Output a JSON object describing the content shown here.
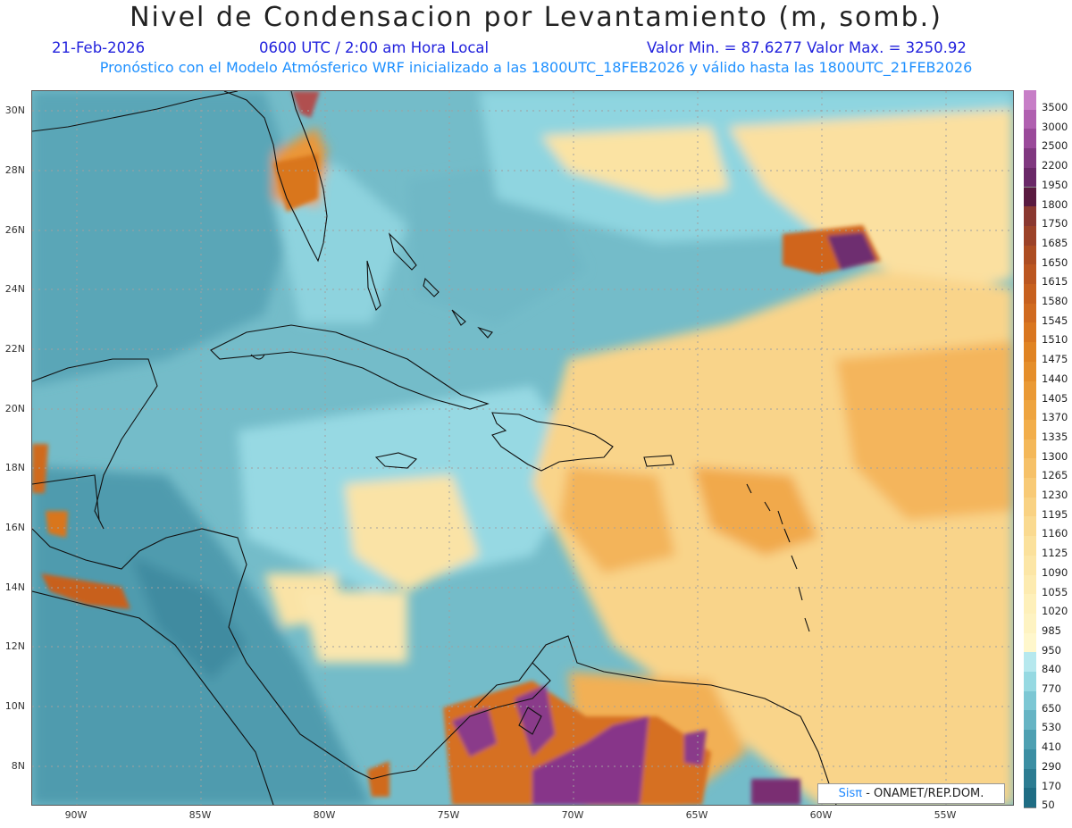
{
  "title": "Nivel de Condensacion por Levantamiento (m, somb.)",
  "date": "21-Feb-2026",
  "time": "0600 UTC / 2:00 am Hora Local",
  "min_max": "Valor Min. = 87.6277   Valor Max. = 3250.92",
  "subtitle": "Pronóstico con el Modelo Atmósferico WRF inicializado a las 1800UTC_18FEB2026 y válido hasta las  1800UTC_21FEB2026",
  "credit": {
    "logo": "Sisπ",
    "text": "- ONAMET/REP.DOM."
  },
  "lat_labels": [
    "30N",
    "28N",
    "26N",
    "24N",
    "22N",
    "20N",
    "18N",
    "16N",
    "14N",
    "12N",
    "10N",
    "8N"
  ],
  "lon_labels": [
    "90W",
    "85W",
    "80W",
    "75W",
    "70W",
    "65W",
    "60W",
    "55W"
  ],
  "colorbar": {
    "labels": [
      "3500",
      "3000",
      "2500",
      "2200",
      "1950",
      "1800",
      "1750",
      "1685",
      "1650",
      "1615",
      "1580",
      "1545",
      "1510",
      "1475",
      "1440",
      "1405",
      "1370",
      "1335",
      "1300",
      "1265",
      "1230",
      "1195",
      "1160",
      "1125",
      "1090",
      "1055",
      "1020",
      "985",
      "950",
      "840",
      "770",
      "650",
      "530",
      "410",
      "290",
      "170",
      "50"
    ],
    "colors": [
      "#c77ec7",
      "#b060b0",
      "#9a4a9a",
      "#803880",
      "#6a2868",
      "#5a1a40",
      "#8a3830",
      "#9c4228",
      "#ad4d22",
      "#bb5620",
      "#c7601e",
      "#d06a1f",
      "#d9761f",
      "#e08322",
      "#e58e2a",
      "#ea9934",
      "#eea43f",
      "#f2ae4b",
      "#f4b859",
      "#f6c168",
      "#f8ca76",
      "#f9d283",
      "#fada90",
      "#fbe19c",
      "#fce6a6",
      "#fdebb0",
      "#fef0ba",
      "#fef3c2",
      "#fff7cc",
      "#b6e8ee",
      "#96d9e2",
      "#7cc7d4",
      "#66b4c4",
      "#4ea0b2",
      "#3b8ea3",
      "#2c7c92",
      "#1f6d84"
    ]
  }
}
